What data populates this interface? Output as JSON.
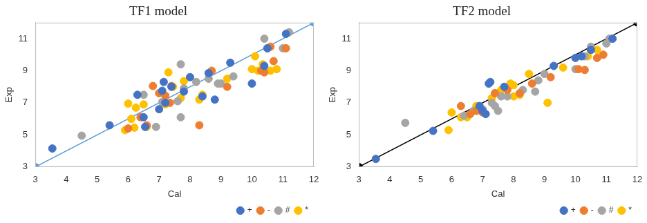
{
  "chart_data": [
    {
      "type": "scatter",
      "title": "TF1 model",
      "x_label": "Cal",
      "y_label": "Exp",
      "xlim": [
        3,
        12
      ],
      "ylim": [
        3,
        12
      ],
      "xticks": [
        3,
        4,
        5,
        6,
        7,
        8,
        9,
        10,
        11,
        12
      ],
      "yticks": [
        3,
        5,
        7,
        9,
        11
      ],
      "grid": false,
      "legend": "bottom",
      "series": [
        {
          "name": "+",
          "color": "#4472c4",
          "marker": "circle",
          "x": [
            3.55,
            5.4,
            6.3,
            6.5,
            6.55,
            7.0,
            7.1,
            7.15,
            7.2,
            7.4,
            7.8,
            8.0,
            8.4,
            8.6,
            8.8,
            9.3,
            10.0,
            10.4,
            10.5,
            11.1
          ],
          "values": [
            4.15,
            5.6,
            7.5,
            6.1,
            5.5,
            6.6,
            7.75,
            8.3,
            7.0,
            8.0,
            7.7,
            8.6,
            7.4,
            8.85,
            7.2,
            9.5,
            8.2,
            9.3,
            10.4,
            11.3
          ]
        },
        {
          "name": "-",
          "color": "#ed7d31",
          "marker": "circle",
          "x": [
            6.0,
            6.4,
            6.6,
            6.8,
            7.0,
            7.2,
            7.35,
            7.4,
            8.3,
            8.7,
            9.2,
            10.3,
            10.4,
            10.6,
            10.7,
            11.1
          ],
          "values": [
            5.4,
            6.1,
            5.6,
            8.05,
            7.6,
            7.45,
            7.0,
            8.05,
            5.6,
            9.0,
            8.0,
            9.0,
            8.9,
            10.5,
            9.6,
            10.4
          ]
        },
        {
          "name": "#",
          "color": "#a5a5a5",
          "marker": "circle",
          "x": [
            4.5,
            6.5,
            6.9,
            7.1,
            7.6,
            7.7,
            7.7,
            7.8,
            8.2,
            8.6,
            8.9,
            9.0,
            9.4,
            10.4,
            10.5,
            11.0,
            11.2
          ],
          "values": [
            4.95,
            7.5,
            5.5,
            7.05,
            7.1,
            6.1,
            9.4,
            7.9,
            8.3,
            8.5,
            8.2,
            8.2,
            8.65,
            11.0,
            10.4,
            10.4,
            11.4
          ]
        },
        {
          "name": "*",
          "color": "#ffc000",
          "marker": "circle",
          "x": [
            5.9,
            6.0,
            6.1,
            6.2,
            6.25,
            6.5,
            6.6,
            7.2,
            7.3,
            7.45,
            7.7,
            7.8,
            8.3,
            8.4,
            9.2,
            10.0,
            10.1,
            10.2,
            10.35,
            10.6,
            10.8
          ],
          "values": [
            5.3,
            6.95,
            6.0,
            5.45,
            6.7,
            6.9,
            5.5,
            6.9,
            8.9,
            8.0,
            7.3,
            8.35,
            7.2,
            7.5,
            8.5,
            9.1,
            9.9,
            9.0,
            9.4,
            9.0,
            9.1
          ]
        }
      ],
      "reference_line": {
        "color": "#5b9bd5",
        "marker": "circle",
        "x": [
          3,
          12
        ],
        "values": [
          3,
          12
        ]
      }
    },
    {
      "type": "scatter",
      "title": "TF2 model",
      "x_label": "Cal",
      "y_label": "Exp",
      "xlim": [
        3,
        12
      ],
      "ylim": [
        3,
        12
      ],
      "xticks": [
        3,
        4,
        5,
        6,
        7,
        8,
        9,
        10,
        11,
        12
      ],
      "yticks": [
        3,
        5,
        7,
        9,
        11
      ],
      "grid": false,
      "legend": "bottom",
      "series": [
        {
          "name": "+",
          "color": "#4472c4",
          "marker": "circle",
          "x": [
            3.55,
            5.4,
            6.9,
            7.0,
            7.1,
            7.2,
            7.25,
            7.7,
            9.3,
            10.0,
            10.2,
            10.5,
            11.2
          ],
          "values": [
            3.5,
            5.25,
            6.8,
            6.5,
            6.3,
            8.2,
            8.3,
            8.0,
            9.3,
            9.8,
            9.9,
            10.3,
            11.0
          ]
        },
        {
          "name": "-",
          "color": "#ed7d31",
          "marker": "circle",
          "x": [
            6.3,
            6.6,
            6.8,
            7.0,
            7.4,
            7.8,
            8.2,
            8.6,
            9.2,
            10.1,
            10.3,
            10.7,
            10.9
          ],
          "values": [
            6.8,
            6.3,
            6.5,
            6.4,
            7.6,
            7.8,
            7.6,
            8.2,
            8.6,
            9.1,
            9.05,
            9.8,
            10.0
          ]
        },
        {
          "name": "#",
          "color": "#a5a5a5",
          "marker": "circle",
          "x": [
            4.5,
            6.4,
            6.7,
            7.0,
            7.3,
            7.4,
            7.5,
            7.6,
            7.8,
            8.3,
            8.7,
            8.8,
            9.0,
            10.0,
            10.3,
            10.5,
            11.0,
            11.1
          ],
          "values": [
            5.75,
            6.2,
            6.5,
            6.6,
            7.0,
            6.8,
            6.5,
            7.4,
            7.4,
            7.8,
            7.7,
            8.4,
            8.8,
            9.1,
            9.9,
            10.5,
            10.7,
            11.0
          ]
        },
        {
          "name": "*",
          "color": "#ffc000",
          "marker": "circle",
          "x": [
            5.9,
            6.0,
            6.3,
            6.5,
            6.8,
            7.3,
            7.4,
            7.6,
            7.9,
            8.0,
            8.0,
            8.2,
            8.5,
            9.1,
            9.6,
            10.4,
            10.7
          ],
          "values": [
            5.3,
            6.4,
            6.1,
            6.1,
            6.8,
            7.3,
            7.6,
            7.8,
            8.2,
            8.1,
            7.4,
            7.5,
            8.8,
            7.0,
            9.2,
            9.9,
            10.3
          ]
        }
      ],
      "reference_line": {
        "color": "#000000",
        "marker": "circle",
        "x": [
          3,
          12
        ],
        "values": [
          3,
          12
        ]
      }
    }
  ]
}
